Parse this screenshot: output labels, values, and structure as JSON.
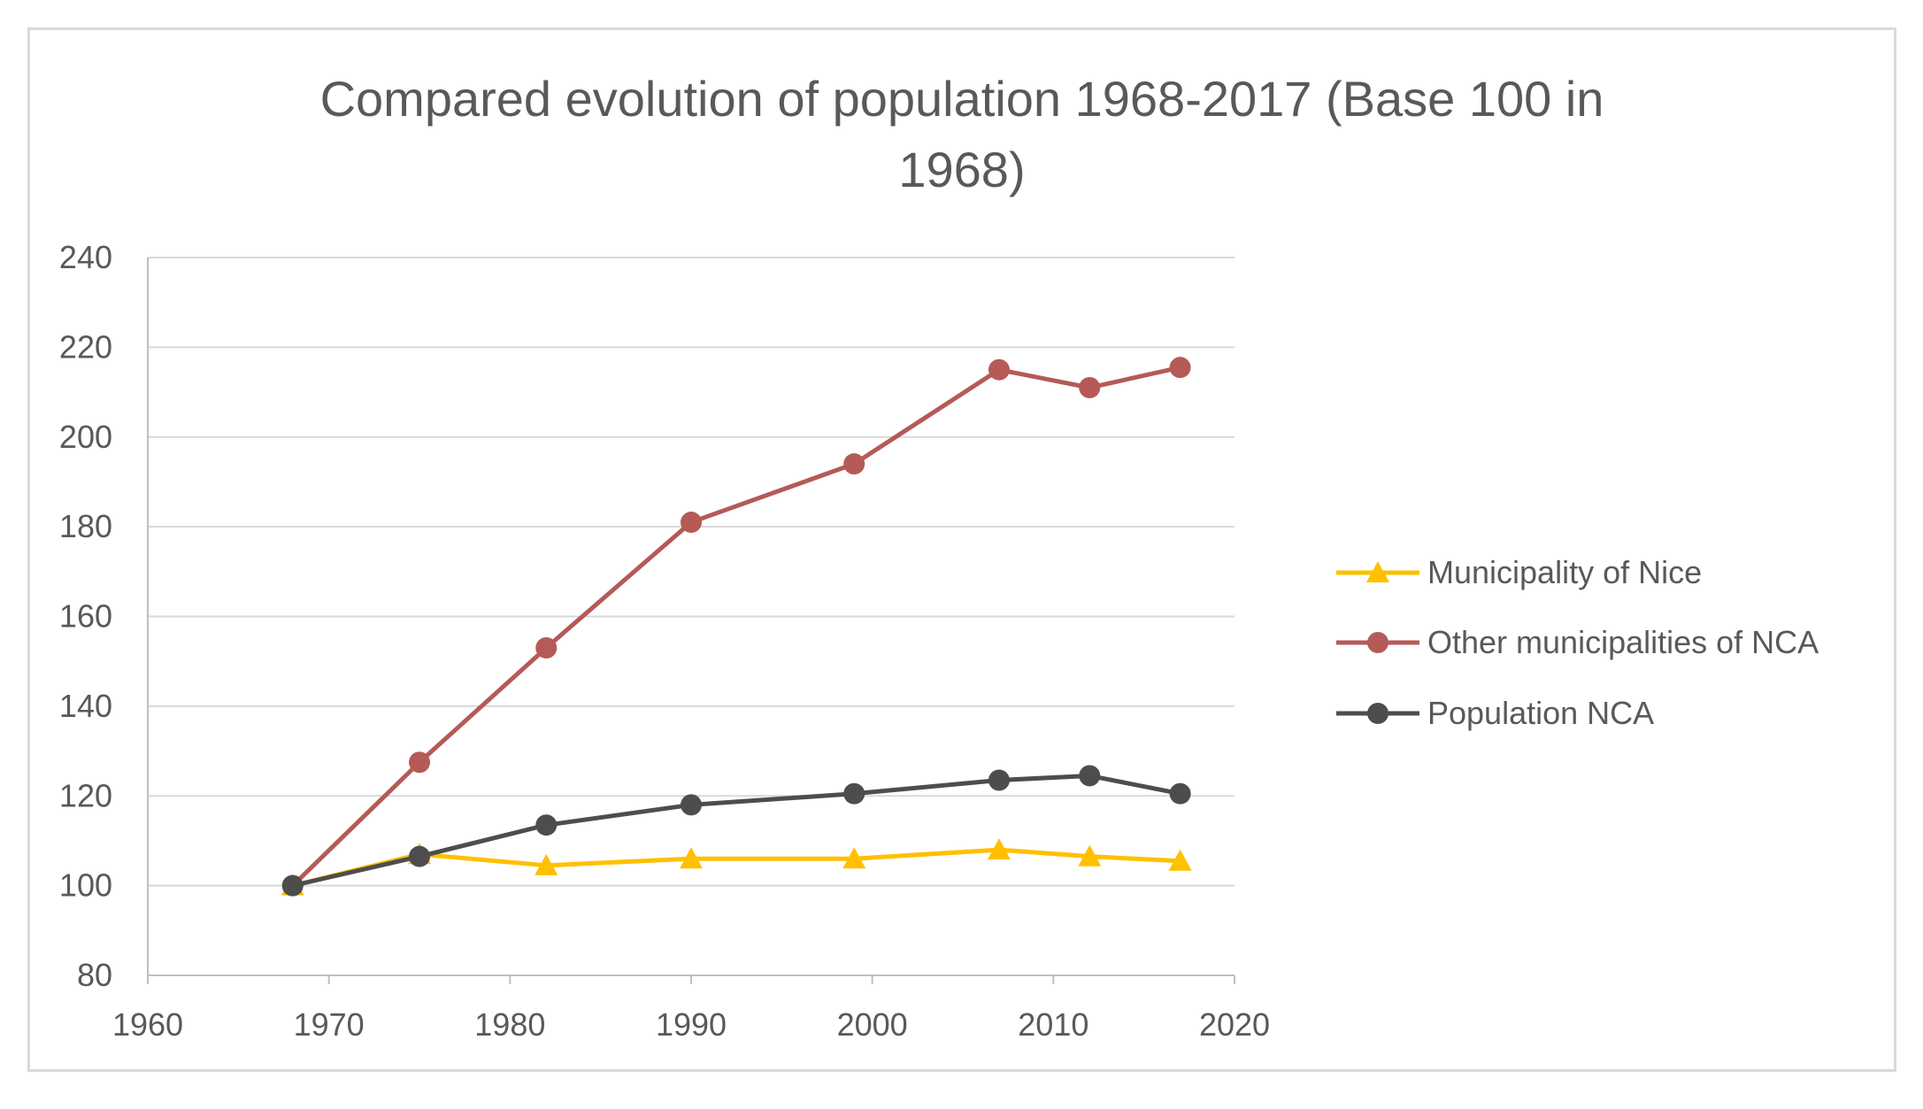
{
  "chart_data": {
    "type": "line",
    "title_lines": [
      "Compared evolution of population 1968-2017 (Base 100 in",
      "1968)"
    ],
    "xlim": [
      1960,
      2020
    ],
    "ylim": [
      80,
      240
    ],
    "x_ticks": [
      "1960",
      "1970",
      "1980",
      "1990",
      "2000",
      "2010",
      "2020"
    ],
    "y_ticks": [
      "80",
      "100",
      "120",
      "140",
      "160",
      "180",
      "200",
      "220",
      "240"
    ],
    "grid": "horizontal",
    "legend_position": "right",
    "x": [
      1968,
      1975,
      1982,
      1990,
      1999,
      2007,
      2012,
      2017
    ],
    "series": [
      {
        "name": "Municipality of Nice",
        "color": "#ffc000",
        "marker": "triangle",
        "values": [
          100,
          107,
          104.5,
          106,
          106,
          108,
          106.5,
          105.5
        ]
      },
      {
        "name": "Other municipalities of NCA",
        "color": "#b55a57",
        "marker": "circle",
        "values": [
          100,
          127.5,
          153,
          181,
          194,
          215,
          211,
          215.5
        ]
      },
      {
        "name": "Population NCA",
        "color": "#4d4d4d",
        "marker": "circle",
        "values": [
          100,
          106.5,
          113.5,
          118,
          120.5,
          123.5,
          124.5,
          120.5
        ]
      }
    ]
  }
}
